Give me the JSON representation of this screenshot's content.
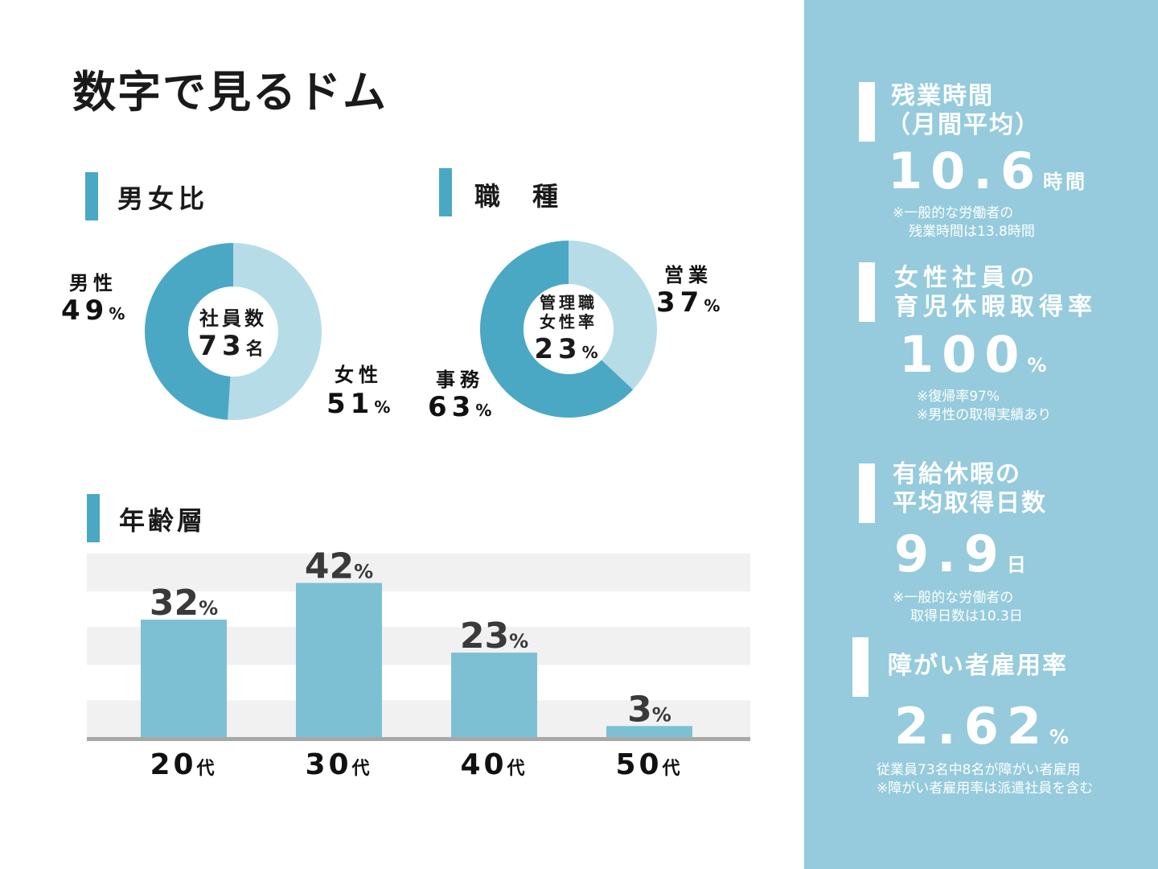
{
  "page_title": "数字で見るドム",
  "gender": {
    "heading": "男女比",
    "center_line1": "社員数",
    "center_number": "73",
    "center_unit": "名",
    "male_label": "男性",
    "male_value": "49",
    "female_label": "女性",
    "female_value": "51",
    "pct": "%"
  },
  "job": {
    "heading": "職　種",
    "center_line1": "管理職",
    "center_line2": "女性率",
    "center_value": "23",
    "sales_label": "営業",
    "sales_value": "37",
    "office_label": "事務",
    "office_value": "63",
    "pct": "%"
  },
  "age": {
    "heading": "年齢層"
  },
  "chart_data": [
    {
      "type": "pie",
      "categories": [
        "女性",
        "男性"
      ],
      "values": [
        51,
        49
      ],
      "colors": [
        "#b6dce8",
        "#4aa8c4"
      ]
    },
    {
      "type": "pie",
      "categories": [
        "営業",
        "事務"
      ],
      "values": [
        37,
        63
      ],
      "colors": [
        "#b6dce8",
        "#4aa8c4"
      ]
    },
    {
      "type": "bar",
      "categories": [
        "20",
        "30",
        "40",
        "50"
      ],
      "category_unit": "代",
      "values": [
        32,
        42,
        23,
        3
      ],
      "value_unit": "%",
      "ylim": [
        0,
        50
      ],
      "bar_color": "#7dc0d4"
    }
  ],
  "right_panel": {
    "overtime": {
      "title_line1": "残業時間",
      "title_line2": "（月間平均）",
      "value": "10.6",
      "unit": "時間",
      "note_line1": "※一般的な労働者の",
      "note_line2": "残業時間は13.8時間"
    },
    "childcare": {
      "title_line1": "女性社員の",
      "title_line2": "育児休暇取得率",
      "value": "100",
      "unit": "%",
      "note_line1": "※復帰率97%",
      "note_line2": "※男性の取得実績あり"
    },
    "paid_leave": {
      "title_line1": "有給休暇の",
      "title_line2": "平均取得日数",
      "value": "9.9",
      "unit": "日",
      "note_line1": "※一般的な労働者の",
      "note_line2": "取得日数は10.3日"
    },
    "disability": {
      "title_line1": "障がい者雇用率",
      "value": "2.62",
      "unit": "%",
      "note_line1": "従業員73名中8名が障がい者雇用",
      "note_line2": "※障がい者雇用率は派遣社員を含む"
    }
  }
}
